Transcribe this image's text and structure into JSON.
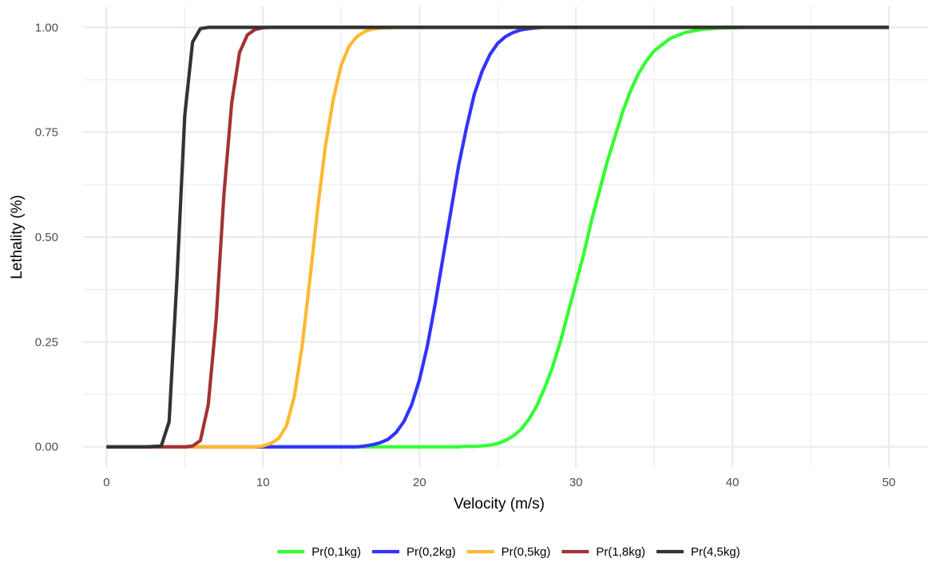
{
  "chart_data": {
    "type": "line",
    "title": "",
    "xlabel": "Velocity (m/s)",
    "ylabel": "Lethality (%)",
    "xlim": [
      -1.5,
      52.5
    ],
    "ylim": [
      -0.05,
      1.05
    ],
    "x_ticks": [
      0,
      10,
      20,
      30,
      40,
      50
    ],
    "x_tick_labels": [
      "0",
      "10",
      "20",
      "30",
      "40",
      "50"
    ],
    "y_ticks": [
      0,
      0.25,
      0.5,
      0.75,
      1
    ],
    "y_tick_labels": [
      "0.00",
      "0.25",
      "0.50",
      "0.75",
      "1.00"
    ],
    "grid": true,
    "legend_position": "bottom",
    "x": [
      0,
      2.5,
      3.5,
      4,
      4.5,
      5,
      5.5,
      6,
      6.5,
      7,
      7.5,
      8,
      8.5,
      9,
      9.5,
      10,
      10.5,
      11,
      11.5,
      12,
      12.5,
      13,
      13.5,
      14,
      14.5,
      15,
      15.5,
      16,
      16.5,
      17,
      17.5,
      18,
      18.5,
      19,
      19.5,
      20,
      20.5,
      21,
      21.5,
      22,
      22.5,
      23,
      23.5,
      24,
      24.5,
      25,
      25.5,
      26,
      26.5,
      27,
      27.5,
      28,
      28.5,
      29,
      29.5,
      30,
      30.5,
      31,
      31.5,
      32,
      32.5,
      33,
      33.5,
      34,
      34.5,
      35,
      36,
      37,
      38,
      39,
      40,
      41,
      42,
      43,
      45,
      50
    ],
    "series": [
      {
        "name": "Pr(0,1kg)",
        "color": "#33ff33",
        "values": [
          0,
          0,
          0,
          0,
          0,
          0,
          0,
          0,
          0,
          0,
          0,
          0,
          0,
          0,
          0,
          0,
          0,
          0,
          0,
          0,
          0,
          0,
          0,
          0,
          0,
          0,
          0,
          0,
          0,
          0,
          0,
          0,
          0,
          0,
          0,
          0,
          0,
          0,
          0,
          0,
          0,
          0.001,
          0.001,
          0.002,
          0.004,
          0.008,
          0.015,
          0.026,
          0.042,
          0.066,
          0.098,
          0.14,
          0.19,
          0.25,
          0.32,
          0.39,
          0.46,
          0.54,
          0.61,
          0.68,
          0.74,
          0.8,
          0.85,
          0.89,
          0.92,
          0.944,
          0.973,
          0.988,
          0.995,
          0.998,
          0.999,
          1,
          1,
          1,
          1,
          1
        ]
      },
      {
        "name": "Pr(0,2kg)",
        "color": "#3333ff",
        "values": [
          0,
          0,
          0,
          0,
          0,
          0,
          0,
          0,
          0,
          0,
          0,
          0,
          0,
          0,
          0,
          0,
          0,
          0,
          0,
          0,
          0,
          0,
          0,
          0,
          0,
          0,
          0,
          0,
          0.002,
          0.005,
          0.01,
          0.018,
          0.034,
          0.06,
          0.1,
          0.16,
          0.24,
          0.34,
          0.45,
          0.56,
          0.67,
          0.76,
          0.84,
          0.895,
          0.935,
          0.962,
          0.978,
          0.988,
          0.994,
          0.997,
          0.999,
          1,
          1,
          1,
          1,
          1,
          1,
          1,
          1,
          1,
          1,
          1,
          1,
          1,
          1,
          1,
          1,
          1,
          1,
          1,
          1,
          1,
          1,
          1,
          1,
          1
        ]
      },
      {
        "name": "Pr(0,5kg)",
        "color": "#ffb833",
        "values": [
          0,
          0,
          0,
          0,
          0,
          0,
          0,
          0,
          0,
          0,
          0,
          0,
          0,
          0,
          0,
          0.002,
          0.008,
          0.02,
          0.05,
          0.12,
          0.24,
          0.4,
          0.57,
          0.72,
          0.83,
          0.91,
          0.955,
          0.978,
          0.99,
          0.996,
          0.998,
          0.999,
          1,
          1,
          1,
          1,
          1,
          1,
          1,
          1,
          1,
          1,
          1,
          1,
          1,
          1,
          1,
          1,
          1,
          1,
          1,
          1,
          1,
          1,
          1,
          1,
          1,
          1,
          1,
          1,
          1,
          1,
          1,
          1,
          1,
          1,
          1,
          1,
          1,
          1,
          1,
          1,
          1,
          1,
          1,
          1
        ]
      },
      {
        "name": "Pr(1,8kg)",
        "color": "#a33333",
        "values": [
          0,
          0,
          0,
          0,
          0,
          0,
          0.002,
          0.015,
          0.1,
          0.3,
          0.6,
          0.82,
          0.94,
          0.982,
          0.995,
          0.999,
          1,
          1,
          1,
          1,
          1,
          1,
          1,
          1,
          1,
          1,
          1,
          1,
          1,
          1,
          1,
          1,
          1,
          1,
          1,
          1,
          1,
          1,
          1,
          1,
          1,
          1,
          1,
          1,
          1,
          1,
          1,
          1,
          1,
          1,
          1,
          1,
          1,
          1,
          1,
          1,
          1,
          1,
          1,
          1,
          1,
          1,
          1,
          1,
          1,
          1,
          1,
          1,
          1,
          1,
          1,
          1,
          1,
          1,
          1,
          1
        ]
      },
      {
        "name": "Pr(4,5kg)",
        "color": "#333333",
        "values": [
          0,
          0,
          0.002,
          0.06,
          0.4,
          0.79,
          0.965,
          0.997,
          1,
          1,
          1,
          1,
          1,
          1,
          1,
          1,
          1,
          1,
          1,
          1,
          1,
          1,
          1,
          1,
          1,
          1,
          1,
          1,
          1,
          1,
          1,
          1,
          1,
          1,
          1,
          1,
          1,
          1,
          1,
          1,
          1,
          1,
          1,
          1,
          1,
          1,
          1,
          1,
          1,
          1,
          1,
          1,
          1,
          1,
          1,
          1,
          1,
          1,
          1,
          1,
          1,
          1,
          1,
          1,
          1,
          1,
          1,
          1,
          1,
          1,
          1,
          1,
          1,
          1,
          1,
          1
        ]
      }
    ]
  }
}
